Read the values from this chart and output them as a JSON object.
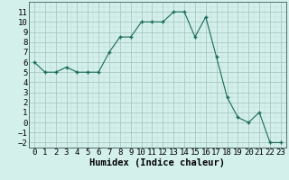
{
  "x": [
    0,
    1,
    2,
    3,
    4,
    5,
    6,
    7,
    8,
    9,
    10,
    11,
    12,
    13,
    14,
    15,
    16,
    17,
    18,
    19,
    20,
    21,
    22,
    23
  ],
  "y": [
    6,
    5,
    5,
    5.5,
    5,
    5,
    5,
    7,
    8.5,
    8.5,
    10,
    10,
    10,
    11,
    11,
    8.5,
    10.5,
    6.5,
    2.5,
    0.5,
    0,
    1,
    -2,
    -2
  ],
  "line_color": "#1a6b5a",
  "marker_color": "#1a6b5a",
  "bg_color": "#d4f0eb",
  "grid_color_major": "#aac8c0",
  "grid_color_minor": "#c0dcd6",
  "xlabel": "Humidex (Indice chaleur)",
  "xlim": [
    -0.5,
    23.5
  ],
  "ylim": [
    -2.5,
    12
  ],
  "yticks": [
    -2,
    -1,
    0,
    1,
    2,
    3,
    4,
    5,
    6,
    7,
    8,
    9,
    10,
    11
  ],
  "xticks": [
    0,
    1,
    2,
    3,
    4,
    5,
    6,
    7,
    8,
    9,
    10,
    11,
    12,
    13,
    14,
    15,
    16,
    17,
    18,
    19,
    20,
    21,
    22,
    23
  ],
  "tick_fontsize": 6.5,
  "xlabel_fontsize": 7.5
}
